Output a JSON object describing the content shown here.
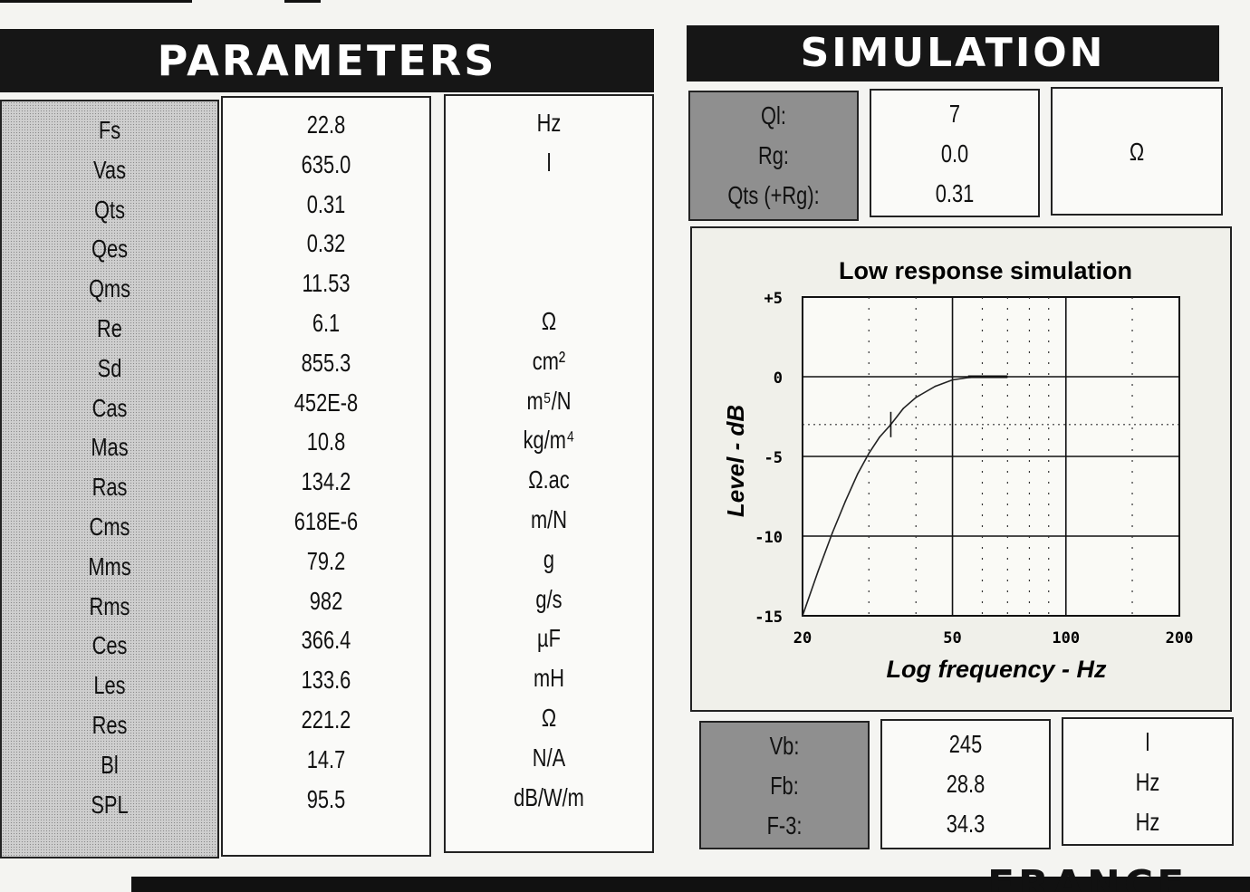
{
  "headers": {
    "parameters": "PARAMETERS",
    "simulation": "SIMULATION"
  },
  "parameters": {
    "names": [
      "Fs",
      "Vas",
      "Qts",
      "Qes",
      "Qms",
      "Re",
      "Sd",
      "Cas",
      "Mas",
      "Ras",
      "Cms",
      "Mms",
      "Rms",
      "Ces",
      "Les",
      "Res",
      "Bl",
      "SPL"
    ],
    "values": [
      "22.8",
      "635.0",
      "0.31",
      "0.32",
      "11.53",
      "6.1",
      "855.3",
      "452E-8",
      "10.8",
      "134.2",
      "618E-6",
      "79.2",
      "982",
      "366.4",
      "133.6",
      "221.2",
      "14.7",
      "95.5"
    ],
    "units": [
      "Hz",
      "l",
      "",
      "",
      "",
      "Ω",
      "cm²",
      "m⁵/N",
      "kg/m⁴",
      "Ω.ac",
      "m/N",
      "g",
      "g/s",
      "µF",
      "mH",
      "Ω",
      "N/A",
      "dB/W/m"
    ]
  },
  "simulation_top": {
    "labels": [
      "Ql:",
      "Rg:",
      "Qts (+Rg):"
    ],
    "values": [
      "7",
      "0.0",
      "0.31"
    ],
    "units": [
      "",
      "Ω",
      ""
    ]
  },
  "simulation_bottom": {
    "labels": [
      "Vb:",
      "Fb:",
      "F-3:"
    ],
    "values": [
      "245",
      "28.8",
      "34.3"
    ],
    "units": [
      "l",
      "Hz",
      "Hz"
    ]
  },
  "chart_data": {
    "type": "line",
    "title": "Low response simulation",
    "xlabel": "Log frequency - Hz",
    "ylabel": "Level - dB",
    "x_scale": "log",
    "xlim": [
      20,
      200
    ],
    "ylim": [
      -15,
      5
    ],
    "x_ticks": [
      "20",
      "50",
      "100",
      "200"
    ],
    "y_ticks": [
      "+5",
      "0",
      "-5",
      "-10",
      "-15"
    ],
    "grid": true,
    "series": [
      {
        "x": [
          20,
          22,
          24,
          26,
          28,
          30,
          32,
          34.3,
          37,
          40,
          45,
          50,
          55,
          60,
          70
        ],
        "y": [
          -15,
          -12.2,
          -9.8,
          -7.8,
          -6.1,
          -4.8,
          -3.8,
          -3.0,
          -2.0,
          -1.3,
          -0.6,
          -0.2,
          -0.05,
          0,
          0
        ]
      }
    ],
    "marker": {
      "x": 34.3,
      "y": -3
    }
  },
  "footer": {
    "text": "FRANCE"
  }
}
